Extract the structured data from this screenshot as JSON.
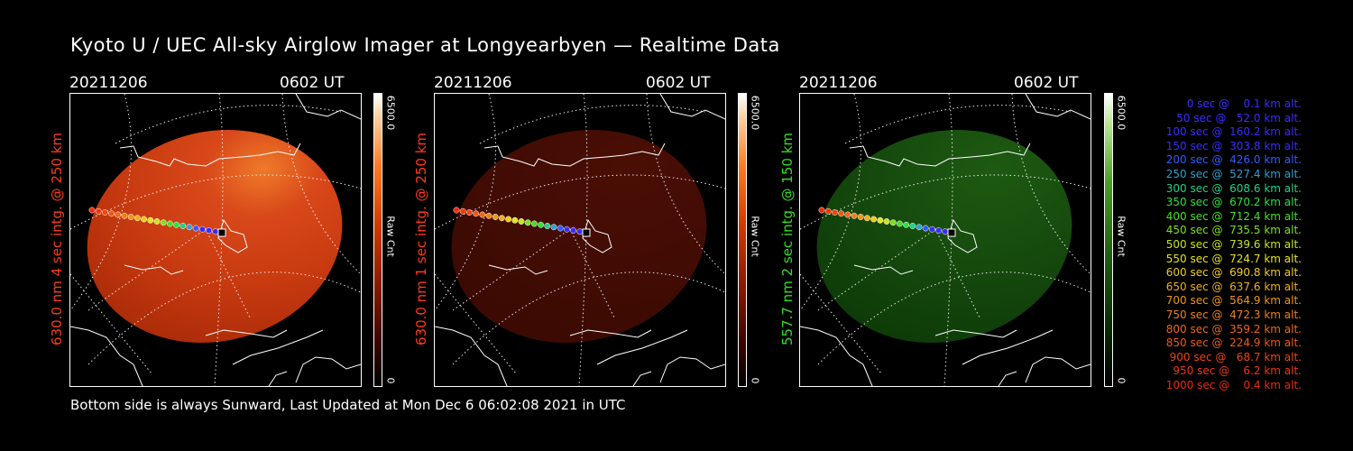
{
  "title": "Kyoto U / UEC All-sky Airglow Imager at Longyearbyen — Realtime Data",
  "footer": "Bottom side is always Sunward, Last Updated at Mon Dec  6 06:02:08 2021 in UTC",
  "colors": {
    "red_label": "#ff3a1a",
    "green_label": "#33dd22"
  },
  "panels": [
    {
      "date": "20211206",
      "time": "0602 UT",
      "ylabel": "630.0 nm 4 sec intg. @ 250 km",
      "cbar_max": "6500.0",
      "cbar_min": "0",
      "cbar_unit": "Raw Cnt",
      "theme": "red",
      "brightness": "bright"
    },
    {
      "date": "20211206",
      "time": "0602 UT",
      "ylabel": "630.0 nm 1 sec intg. @ 250 km",
      "cbar_max": "6500.0",
      "cbar_min": "0",
      "cbar_unit": "Raw Cnt",
      "theme": "red",
      "brightness": "dim"
    },
    {
      "date": "20211206",
      "time": "0602 UT",
      "ylabel": "557.7 nm 2 sec intg. @ 150 km",
      "cbar_max": "6500.0",
      "cbar_min": "0",
      "cbar_unit": "Raw Cnt",
      "theme": "green",
      "brightness": "dim"
    }
  ],
  "legend": [
    {
      "text": "0 sec @    0.1 km alt.",
      "color": "#3a2cff"
    },
    {
      "text": "50 sec @   52.0 km alt.",
      "color": "#3a2cff"
    },
    {
      "text": "100 sec @  160.2 km alt.",
      "color": "#3a2cff"
    },
    {
      "text": "150 sec @  303.8 km alt.",
      "color": "#3a2cff"
    },
    {
      "text": "200 sec @  426.0 km alt.",
      "color": "#2f5cff"
    },
    {
      "text": "250 sec @  527.4 km alt.",
      "color": "#2fa0d0"
    },
    {
      "text": "300 sec @  608.6 km alt.",
      "color": "#22d08a"
    },
    {
      "text": "350 sec @  670.2 km alt.",
      "color": "#2ee040"
    },
    {
      "text": "400 sec @  712.4 km alt.",
      "color": "#44e022"
    },
    {
      "text": "450 sec @  735.5 km alt.",
      "color": "#7ee020"
    },
    {
      "text": "500 sec @  739.6 km alt.",
      "color": "#c8e41e"
    },
    {
      "text": "550 sec @  724.7 km alt.",
      "color": "#e4e41c"
    },
    {
      "text": "600 sec @  690.8 km alt.",
      "color": "#f0cc1a"
    },
    {
      "text": "650 sec @  637.6 km alt.",
      "color": "#f0b018"
    },
    {
      "text": "700 sec @  564.9 km alt.",
      "color": "#f09616"
    },
    {
      "text": "750 sec @  472.3 km alt.",
      "color": "#f08014"
    },
    {
      "text": "800 sec @  359.2 km alt.",
      "color": "#f06812"
    },
    {
      "text": "850 sec @  224.9 km alt.",
      "color": "#f05810"
    },
    {
      "text": "900 sec @   68.7 km alt.",
      "color": "#f0440e"
    },
    {
      "text": "950 sec @    6.2 km alt.",
      "color": "#f0360e"
    },
    {
      "text": "1000 sec @    0.4 km alt.",
      "color": "#f0280c"
    }
  ]
}
